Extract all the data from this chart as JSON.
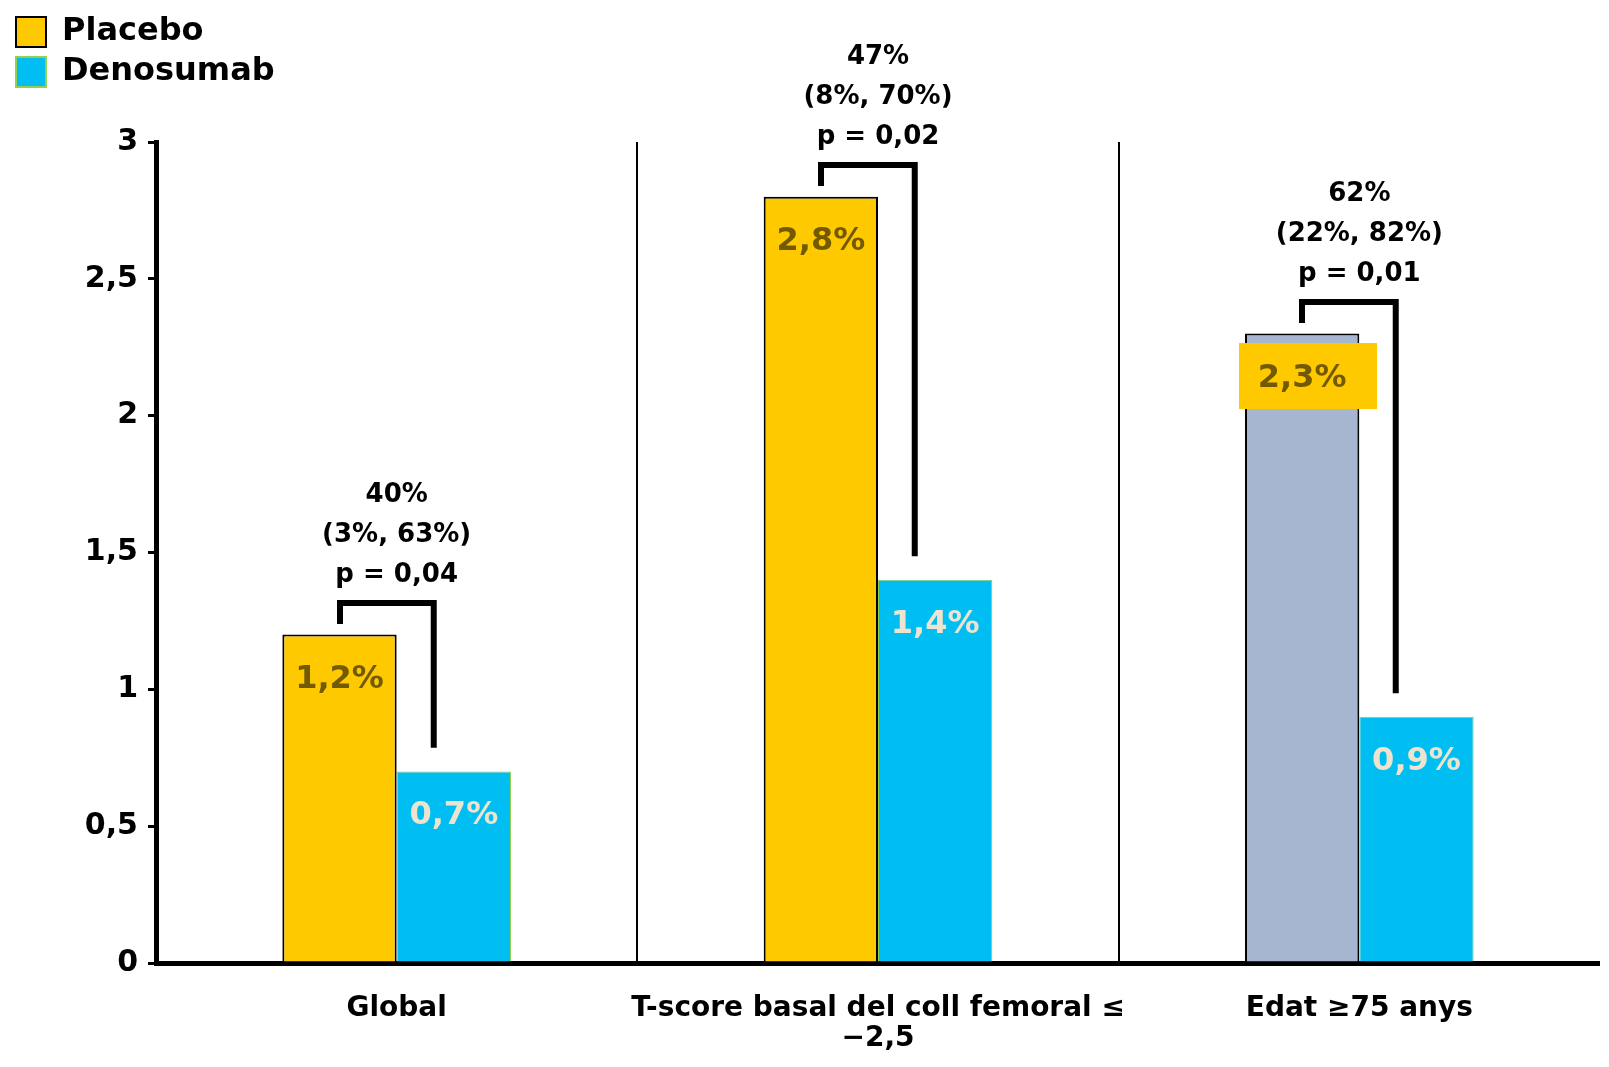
{
  "chart_data": {
    "type": "bar",
    "categories": [
      "Global",
      "T-score basal del coll femoral ≤ −2,5",
      "Edat ≥75 anys"
    ],
    "series": [
      {
        "name": "Placebo",
        "color": "#ffc900",
        "colors": [
          "#ffc900",
          "#ffc900",
          "#a6b6d0"
        ],
        "values": [
          1.2,
          2.8,
          2.3
        ],
        "value_labels": [
          "1,2%",
          "2,8%",
          "2,3%"
        ]
      },
      {
        "name": "Denosumab",
        "color": "#00bef2",
        "values": [
          0.7,
          1.4,
          0.9
        ],
        "value_labels": [
          "0,7%",
          "1,4%",
          "0,9%"
        ]
      }
    ],
    "ylim": [
      0,
      3
    ],
    "yticks": [
      0,
      {
        "value": 0.5,
        "label": "0,5"
      },
      1,
      {
        "value": 1.5,
        "label": "1,5"
      },
      2,
      {
        "value": 2.5,
        "label": "2,5"
      },
      3
    ],
    "grid": "x",
    "legend": "top left",
    "annotations": [
      "40%\n(3%, 63%)\np = 0,04",
      "47%\n(8%, 70%)\np = 0,02",
      "62%\n(22%, 82%)\np = 0,01"
    ]
  }
}
